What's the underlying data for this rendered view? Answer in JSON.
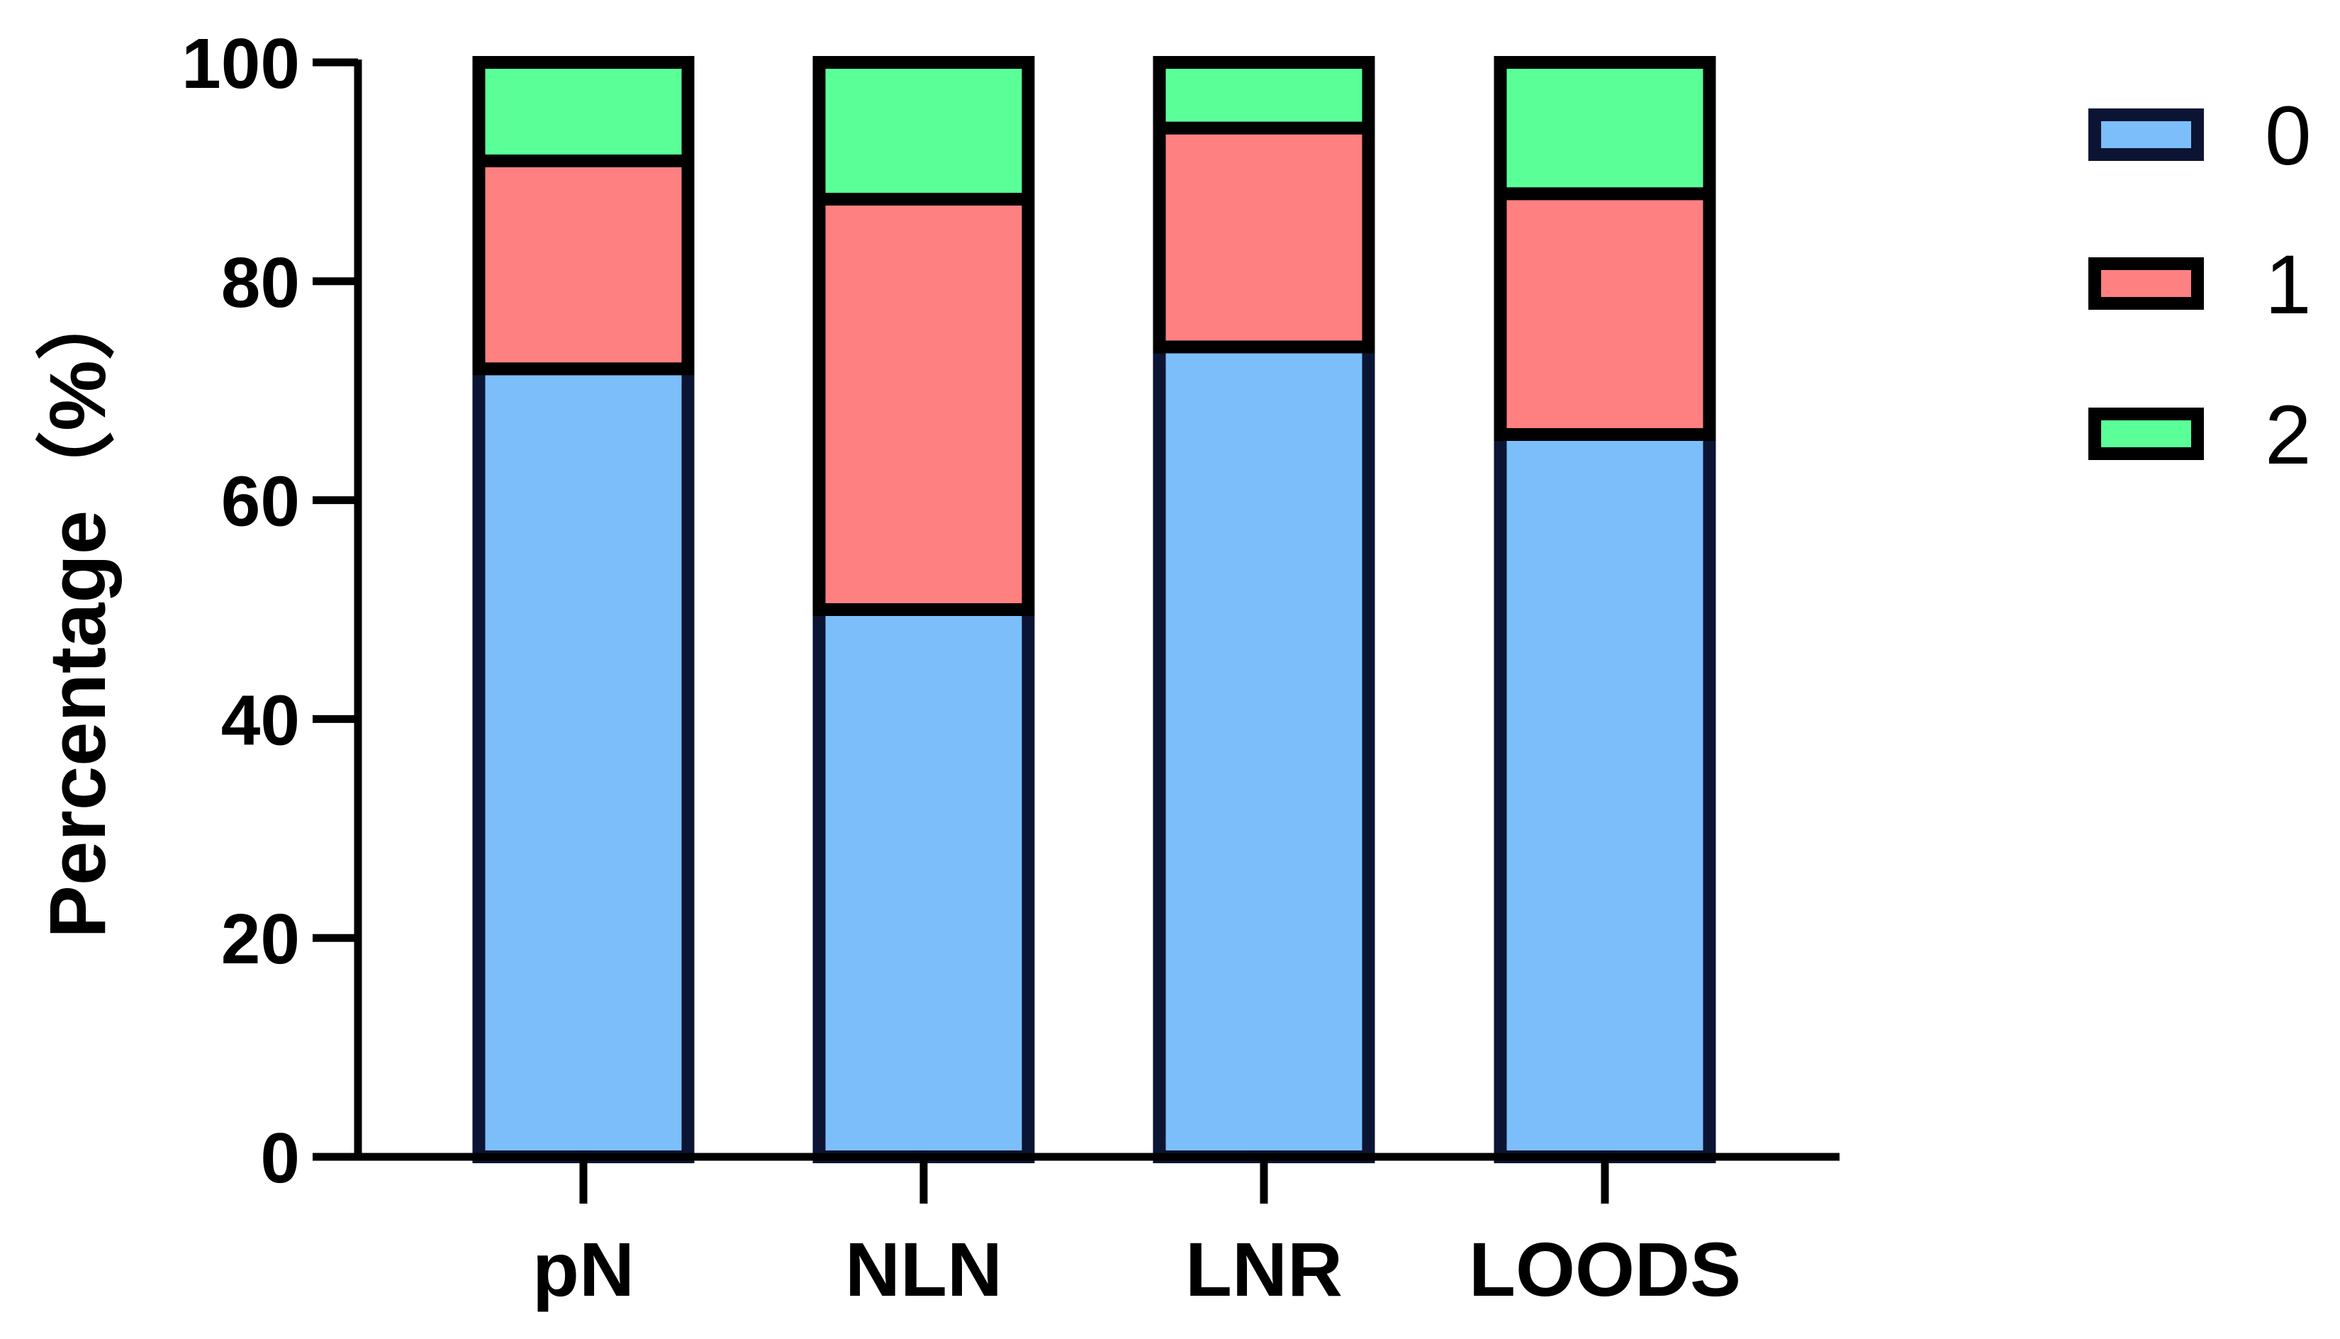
{
  "chart_data": {
    "type": "bar",
    "stacked": true,
    "categories": [
      "pN",
      "NLN",
      "LNR",
      "LOODS"
    ],
    "series": [
      {
        "name": "0",
        "values": [
          72,
          50,
          74,
          66
        ],
        "color": "#7bbefa"
      },
      {
        "name": "1",
        "values": [
          19,
          37.5,
          20,
          22
        ],
        "color": "#fe8080"
      },
      {
        "name": "2",
        "values": [
          9,
          12.5,
          6,
          12
        ],
        "color": "#5aff97"
      }
    ],
    "title": "",
    "xlabel": "",
    "ylabel": "Percentage（%）",
    "ylim": [
      0,
      100
    ],
    "yticks": [
      "0",
      "20",
      "40",
      "60",
      "80",
      "100"
    ],
    "grid": false,
    "legend_position": "right",
    "bar_outline_colors": {
      "0": "#0b1433",
      "1": "#000000",
      "2": "#000000"
    }
  }
}
